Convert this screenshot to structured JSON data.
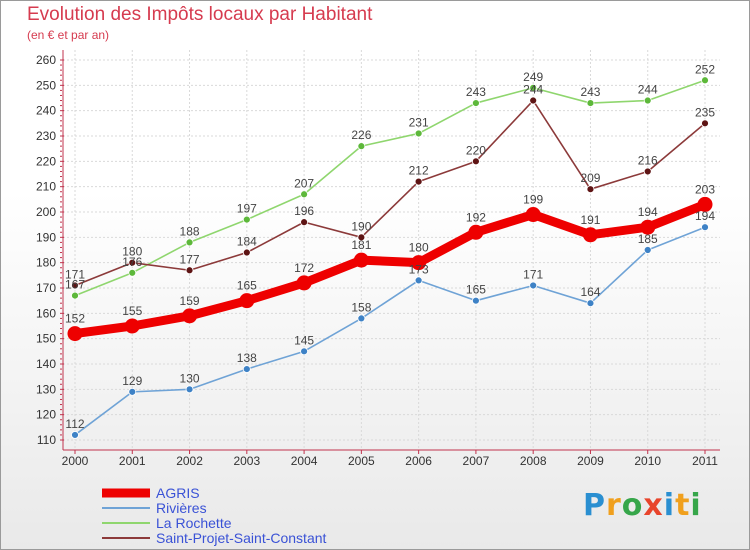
{
  "title": "Evolution des Impôts locaux par Habitant",
  "subtitle": "(en € et par an)",
  "logo": [
    "P",
    "r",
    "o",
    "x",
    "i",
    "t",
    "i"
  ],
  "logo_colors": [
    "#2a8fd1",
    "#f0a01e",
    "#36a64a",
    "#e8452c",
    "#2a8fd1",
    "#f0a01e",
    "#36a64a"
  ],
  "chart_data": {
    "type": "line",
    "title": "Evolution des Impôts locaux par Habitant",
    "subtitle": "(en € et par an)",
    "x": [
      "2000",
      "2001",
      "2002",
      "2003",
      "2004",
      "2005",
      "2006",
      "2007",
      "2008",
      "2009",
      "2010",
      "2011"
    ],
    "ylim": [
      110,
      260
    ],
    "yticks": [
      110,
      120,
      130,
      140,
      150,
      160,
      170,
      180,
      190,
      200,
      210,
      220,
      230,
      240,
      250,
      260
    ],
    "grid": true,
    "legend_position": "bottom-left",
    "series": [
      {
        "name": "La Rochette",
        "color": "#8fd66e",
        "marker": "#5db83a",
        "values": [
          167,
          176,
          188,
          197,
          207,
          226,
          231,
          243,
          249,
          243,
          244,
          252
        ]
      },
      {
        "name": "Saint-Projet-Saint-Constant",
        "color": "#8c3a3a",
        "marker": "#5e1414",
        "values": [
          171,
          180,
          177,
          184,
          196,
          190,
          212,
          220,
          244,
          209,
          216,
          235
        ]
      },
      {
        "name": "Rivières",
        "color": "#6fa3d6",
        "marker": "#3e82c6",
        "values": [
          112,
          129,
          130,
          138,
          145,
          158,
          173,
          165,
          171,
          164,
          185,
          194
        ]
      },
      {
        "name": "AGRIS",
        "color": "#ee0000",
        "marker": "#ee0000",
        "values": [
          152,
          155,
          159,
          165,
          172,
          181,
          180,
          192,
          199,
          191,
          194,
          203
        ]
      }
    ],
    "legend": [
      "AGRIS",
      "Rivières",
      "La Rochette",
      "Saint-Projet-Saint-Constant"
    ]
  }
}
